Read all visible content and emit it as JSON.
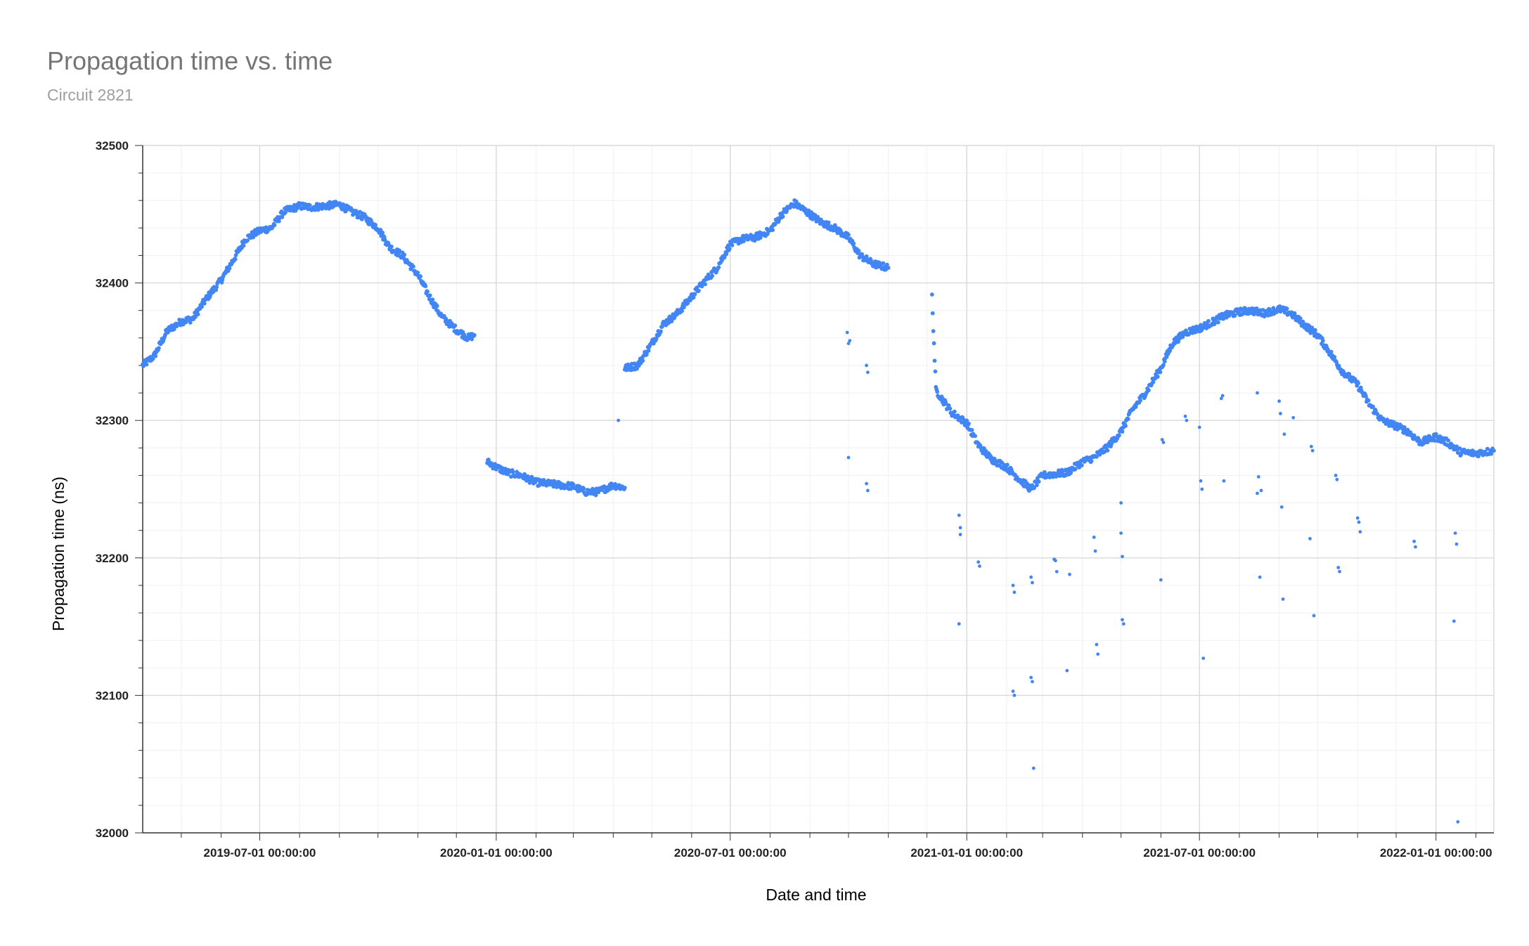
{
  "chart_data": {
    "type": "scatter",
    "title": "Propagation time vs. time",
    "subtitle": "Circuit 2821",
    "xlabel": "Date and time",
    "ylabel": "Propagation time (ns)",
    "xlim": [
      "2019-04-01",
      "2022-02-15"
    ],
    "ylim": [
      32000,
      32500
    ],
    "x_ticks": [
      "2019-07-01 00:00:00",
      "2020-01-01 00:00:00",
      "2020-07-01 00:00:00",
      "2021-01-01 00:00:00",
      "2021-07-01 00:00:00",
      "2022-01-01 00:00:00"
    ],
    "y_ticks": [
      32000,
      32100,
      32200,
      32300,
      32400,
      32500
    ],
    "grid": true,
    "legend": "none",
    "color": "#4285f4",
    "series": [
      {
        "x": [
          "2019-04-01",
          "2019-04-10",
          "2019-04-20",
          "2019-05-01",
          "2019-05-10",
          "2019-05-20",
          "2019-06-01",
          "2019-06-10",
          "2019-06-20",
          "2019-07-01",
          "2019-07-10",
          "2019-07-20",
          "2019-08-01",
          "2019-08-10",
          "2019-08-20",
          "2019-09-01",
          "2019-09-10",
          "2019-09-20",
          "2019-10-01",
          "2019-10-10",
          "2019-10-20",
          "2019-11-01",
          "2019-11-10",
          "2019-11-20",
          "2019-12-01",
          "2019-12-10",
          "2019-12-15"
        ],
        "y": [
          32340,
          32347,
          32365,
          32372,
          32374,
          32388,
          32402,
          32416,
          32432,
          32438,
          32440,
          32452,
          32456,
          32455,
          32456,
          32457,
          32452,
          32448,
          32440,
          32426,
          32420,
          32406,
          32390,
          32375,
          32366,
          32360,
          32362
        ]
      },
      {
        "x": [
          "2019-12-25",
          "2020-01-01",
          "2020-01-10",
          "2020-01-20",
          "2020-02-01",
          "2020-02-10",
          "2020-02-20",
          "2020-03-01",
          "2020-03-10",
          "2020-03-20",
          "2020-04-01",
          "2020-04-10"
        ],
        "y": [
          32270,
          32266,
          32262,
          32260,
          32255,
          32254,
          32253,
          32252,
          32248,
          32248,
          32253,
          32251
        ]
      },
      {
        "x": [
          "2020-04-10",
          "2020-04-20",
          "2020-05-01",
          "2020-05-10",
          "2020-05-20",
          "2020-06-01",
          "2020-06-10",
          "2020-06-20",
          "2020-07-01",
          "2020-07-10",
          "2020-07-20",
          "2020-08-01",
          "2020-08-10",
          "2020-08-20",
          "2020-09-01",
          "2020-09-10",
          "2020-09-20",
          "2020-10-01",
          "2020-10-10",
          "2020-10-20",
          "2020-11-01"
        ],
        "y": [
          32338,
          32340,
          32356,
          32370,
          32377,
          32390,
          32400,
          32410,
          32428,
          32432,
          32433,
          32438,
          32450,
          32458,
          32450,
          32444,
          32440,
          32433,
          32420,
          32414,
          32411
        ]
      },
      {
        "x": [
          "2020-12-05",
          "2020-12-08",
          "2020-12-20",
          "2021-01-01",
          "2021-01-10",
          "2021-01-20",
          "2021-02-01",
          "2021-02-10",
          "2021-02-20",
          "2021-03-01",
          "2021-03-10",
          "2021-03-20",
          "2021-04-01",
          "2021-04-10",
          "2021-04-20",
          "2021-05-01",
          "2021-05-10",
          "2021-05-20",
          "2021-06-01",
          "2021-06-10",
          "2021-06-20",
          "2021-07-01",
          "2021-07-10",
          "2021-07-20",
          "2021-08-01",
          "2021-08-10",
          "2021-08-20",
          "2021-09-01",
          "2021-09-10",
          "2021-09-20",
          "2021-10-01",
          "2021-10-10",
          "2021-10-20",
          "2021-11-01",
          "2021-11-10",
          "2021-11-20",
          "2021-12-01",
          "2021-12-10",
          "2021-12-20",
          "2022-01-01",
          "2022-01-10",
          "2022-01-20",
          "2022-02-01",
          "2022-02-15"
        ],
        "y": [
          32390,
          32322,
          32306,
          32298,
          32282,
          32272,
          32266,
          32258,
          32250,
          32260,
          32261,
          32262,
          32270,
          32273,
          32280,
          32292,
          32308,
          32320,
          32338,
          32356,
          32364,
          32367,
          32371,
          32376,
          32379,
          32380,
          32378,
          32381,
          32378,
          32370,
          32362,
          32350,
          32336,
          32326,
          32312,
          32300,
          32296,
          32292,
          32284,
          32288,
          32284,
          32277,
          32276,
          32278
        ]
      },
      {
        "x": [
          "2020-04-05",
          "2020-09-30",
          "2020-10-01",
          "2020-10-02",
          "2020-10-01",
          "2020-10-15",
          "2020-10-16",
          "2020-10-15",
          "2020-10-16",
          "2020-12-26",
          "2020-12-27",
          "2020-12-26",
          "2020-12-27",
          "2021-01-10",
          "2021-01-11",
          "2021-02-06",
          "2021-02-07",
          "2021-02-06",
          "2021-02-07",
          "2021-02-20",
          "2021-02-21",
          "2021-02-20",
          "2021-02-21",
          "2021-02-22",
          "2021-03-10",
          "2021-03-11",
          "2021-03-12",
          "2021-03-20",
          "2021-03-21",
          "2021-03-22",
          "2021-04-10",
          "2021-04-11",
          "2021-04-12",
          "2021-04-13",
          "2021-05-01",
          "2021-05-02",
          "2021-05-03",
          "2021-05-01",
          "2021-05-02",
          "2021-06-01",
          "2021-06-02",
          "2021-06-03",
          "2021-06-20",
          "2021-06-21",
          "2021-07-01",
          "2021-07-02",
          "2021-07-03",
          "2021-07-04",
          "2021-07-18",
          "2021-07-19",
          "2021-07-20",
          "2021-08-15",
          "2021-08-16",
          "2021-08-17",
          "2021-08-18",
          "2021-08-15",
          "2021-09-01",
          "2021-09-02",
          "2021-09-03",
          "2021-09-04",
          "2021-09-05",
          "2021-09-12",
          "2021-09-25",
          "2021-09-26",
          "2021-09-27",
          "2021-09-28",
          "2021-10-15",
          "2021-10-16",
          "2021-10-17",
          "2021-10-18",
          "2021-11-01",
          "2021-11-02",
          "2021-11-03",
          "2021-12-15",
          "2021-12-16",
          "2022-01-15",
          "2022-01-16",
          "2022-01-17",
          "2022-01-18"
        ],
        "y": [
          32300,
          32364,
          32356,
          32358,
          32273,
          32340,
          32335,
          32254,
          32249,
          32231,
          32222,
          32152,
          32217,
          32197,
          32194,
          32180,
          32175,
          32103,
          32100,
          32186,
          32182,
          32113,
          32110,
          32047,
          32199,
          32198,
          32190,
          32118,
          32264,
          32188,
          32215,
          32205,
          32137,
          32130,
          32240,
          32155,
          32152,
          32218,
          32201,
          32184,
          32286,
          32284,
          32303,
          32300,
          32295,
          32256,
          32250,
          32127,
          32316,
          32318,
          32256,
          32247,
          32259,
          32186,
          32249,
          32320,
          32314,
          32305,
          32237,
          32170,
          32290,
          32302,
          32214,
          32281,
          32278,
          32158,
          32260,
          32257,
          32193,
          32190,
          32229,
          32226,
          32219,
          32212,
          32208,
          32154,
          32218,
          32210,
          32008
        ]
      }
    ]
  }
}
